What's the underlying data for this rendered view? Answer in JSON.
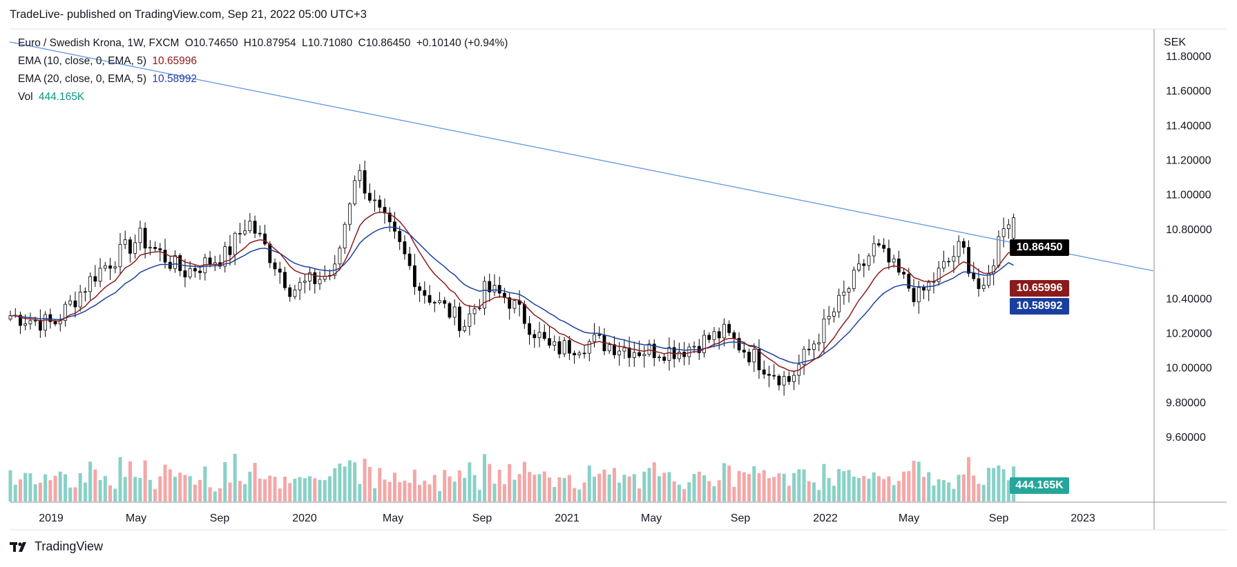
{
  "header": {
    "published": "TradeLive- published on TradingView.com, Sep 21, 2022 05:00 UTC+3"
  },
  "legend": {
    "symbol": "Euro / Swedish Krona, 1W, FXCM",
    "open": "O10.74650",
    "high": "H10.87954",
    "low": "L10.71080",
    "close": "C10.86450",
    "change": "+0.10140 (+0.94%)",
    "ema10_label": "EMA (10, close, 0, EMA, 5)",
    "ema10_value": "10.65996",
    "ema20_label": "EMA (20, close, 0, EMA, 5)",
    "ema20_value": "10.58992",
    "vol_label": "Vol",
    "vol_value": "444.165K"
  },
  "price_tags": {
    "last": "10.86450",
    "ema10": "10.65996",
    "ema20": "10.58992",
    "volume": "444.165K"
  },
  "footer": {
    "brand": "TradingView"
  },
  "colors": {
    "up": "#ffffff",
    "down": "#000000",
    "vol_up": "#89d1c7",
    "vol_down": "#f4a7a7",
    "ema10": "#8b1a1a",
    "ema20": "#1b3fa0",
    "trendline": "#5b8de8",
    "last_tag": "#000000",
    "vol_tag": "#26a69a"
  },
  "chart_data": {
    "type": "candlestick",
    "currency": "SEK",
    "y_ticks": [
      "11.80000",
      "11.60000",
      "11.40000",
      "11.20000",
      "11.00000",
      "10.80000",
      "10.40000",
      "10.20000",
      "10.00000",
      "9.80000",
      "9.60000"
    ],
    "x_ticks": [
      "2019",
      "May",
      "Sep",
      "2020",
      "May",
      "Sep",
      "2021",
      "May",
      "Sep",
      "2022",
      "May",
      "Sep",
      "2023"
    ],
    "ylim": [
      9.6,
      11.9
    ],
    "trendline": {
      "from": [
        "2018-11",
        11.88
      ],
      "to": [
        "2022-09",
        10.73
      ]
    },
    "series": [
      {
        "name": "EMA (10, close, 0, EMA, 5)",
        "last": 10.65996
      },
      {
        "name": "EMA (20, close, 0, EMA, 5)",
        "last": 10.58992
      },
      {
        "name": "Vol",
        "last": "444.165K"
      }
    ],
    "key_closes": [
      [
        "2018-11",
        10.3
      ],
      [
        "2019-01",
        10.25
      ],
      [
        "2019-03",
        10.55
      ],
      [
        "2019-05",
        10.75
      ],
      [
        "2019-07",
        10.55
      ],
      [
        "2019-09",
        10.65
      ],
      [
        "2019-10",
        10.85
      ],
      [
        "2019-12",
        10.45
      ],
      [
        "2020-02",
        10.55
      ],
      [
        "2020-03",
        11.15
      ],
      [
        "2020-04",
        10.9
      ],
      [
        "2020-05",
        10.7
      ],
      [
        "2020-06",
        10.45
      ],
      [
        "2020-08",
        10.25
      ],
      [
        "2020-09",
        10.45
      ],
      [
        "2020-10",
        10.4
      ],
      [
        "2020-12",
        10.1
      ],
      [
        "2021-02",
        10.15
      ],
      [
        "2021-04",
        10.1
      ],
      [
        "2021-06",
        10.1
      ],
      [
        "2021-08",
        10.2
      ],
      [
        "2021-10",
        10.0
      ],
      [
        "2021-11",
        9.92
      ],
      [
        "2022-01",
        10.3
      ],
      [
        "2022-03",
        10.7
      ],
      [
        "2022-05",
        10.4
      ],
      [
        "2022-07",
        10.7
      ],
      [
        "2022-08",
        10.4
      ],
      [
        "2022-09",
        10.86
      ]
    ]
  }
}
